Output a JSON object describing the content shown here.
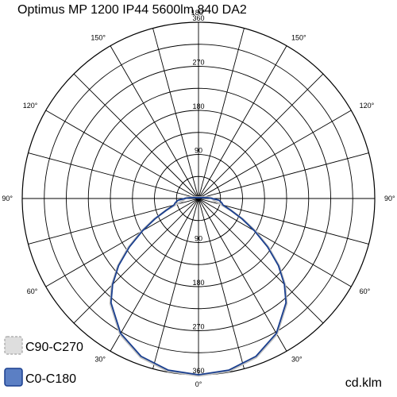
{
  "chart_data": {
    "type": "polar",
    "title": "Optimus MP 1200 IP44 5600lm 840 DA2",
    "unit": "cd.klm",
    "radial_ticks": [
      90,
      180,
      270,
      360
    ],
    "radial_max": 360,
    "angle_labels": [
      {
        "angle": 0,
        "text": "0°"
      },
      {
        "angle": 30,
        "text": "30°"
      },
      {
        "angle": 60,
        "text": "60°"
      },
      {
        "angle": 90,
        "text": "90°"
      },
      {
        "angle": 120,
        "text": "120°"
      },
      {
        "angle": 150,
        "text": "150°"
      },
      {
        "angle": 180,
        "text": "180°"
      },
      {
        "angle": -30,
        "text": "30°"
      },
      {
        "angle": -60,
        "text": "60°"
      },
      {
        "angle": -90,
        "text": "90°"
      },
      {
        "angle": -120,
        "text": "120°"
      },
      {
        "angle": -150,
        "text": "150°"
      }
    ],
    "series": [
      {
        "name": "C90-C270",
        "color": "#c0c0c0",
        "fill": "#dedede",
        "angles": [
          0,
          10,
          20,
          30,
          40,
          45,
          50,
          55,
          60,
          65,
          70,
          75,
          80,
          85,
          90,
          95,
          100
        ],
        "values": [
          362,
          358,
          345,
          320,
          280,
          250,
          215,
          175,
          135,
          100,
          70,
          48,
          35,
          30,
          28,
          25,
          15
        ]
      },
      {
        "name": "C0-C180",
        "color": "#1a3f8f",
        "fill": "#5b7fc4",
        "angles": [
          0,
          10,
          20,
          30,
          40,
          45,
          50,
          55,
          60,
          65,
          70,
          75,
          80,
          85,
          90,
          95,
          100
        ],
        "values": [
          360,
          356,
          343,
          318,
          278,
          248,
          213,
          172,
          132,
          98,
          70,
          52,
          48,
          42,
          28,
          18,
          10
        ]
      }
    ],
    "legend": [
      {
        "name": "C90-C270",
        "swatch": "#dedede",
        "border": "#b0b0b0",
        "dashed": true
      },
      {
        "name": "C0-C180",
        "swatch": "#5b7fc4",
        "border": "#1a3f8f",
        "dashed": false
      }
    ]
  }
}
